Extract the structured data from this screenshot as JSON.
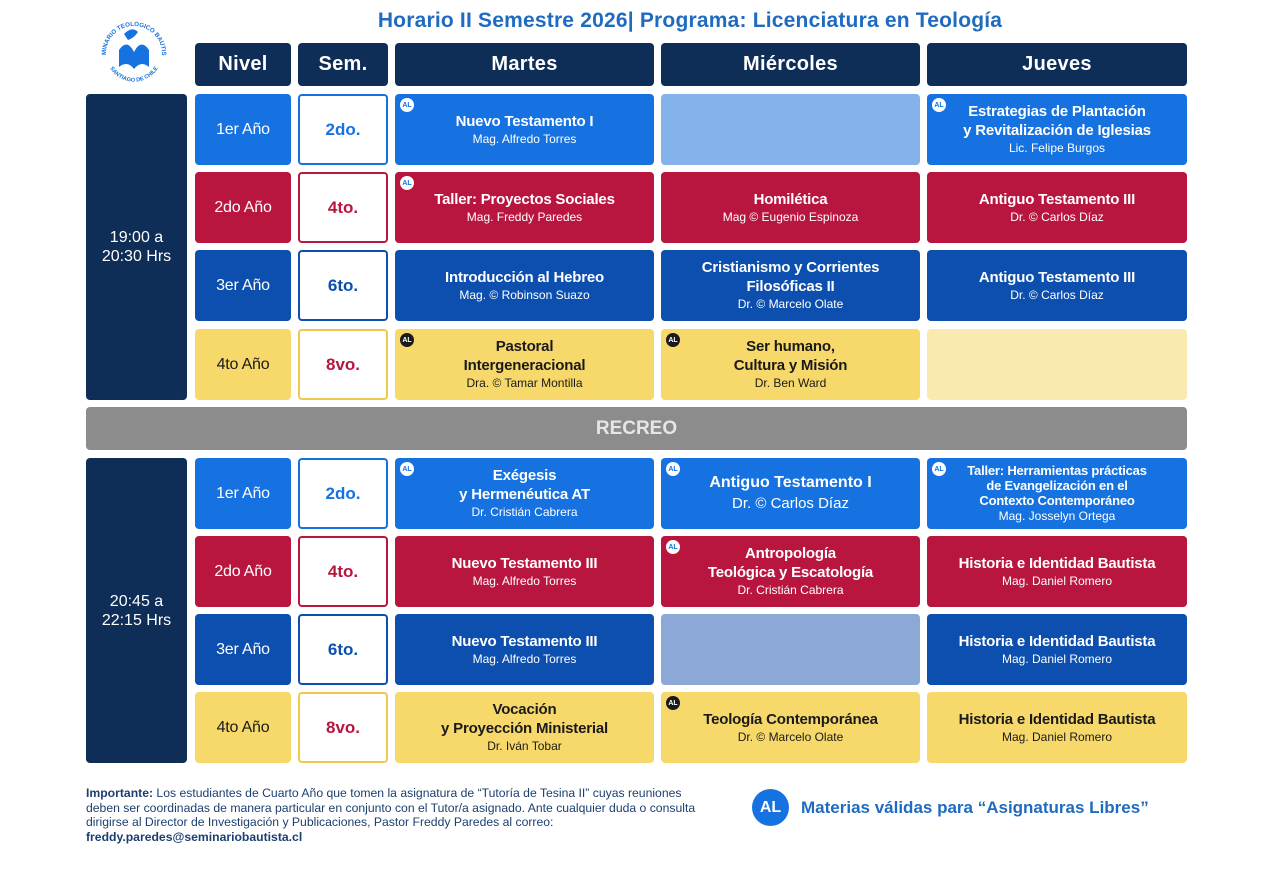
{
  "title": "Horario II Semestre 2026| Programa: Licenciatura en Teología",
  "logo": {
    "text_top": "SEMINARIO TEOLOGICO BAUTISTA",
    "text_bottom": "SANTIAGO DE CHILE"
  },
  "headers": {
    "nivel": "Nivel",
    "sem": "Sem.",
    "martes": "Martes",
    "miercoles": "Miércoles",
    "jueves": "Jueves"
  },
  "block1": {
    "time": "19:00 a\n20:30 Hrs",
    "rows": [
      {
        "nivel": "1er Año",
        "sem": "2do.",
        "martes": {
          "al": true,
          "subject": "Nuevo Testamento I",
          "teacher": "Mag. Alfredo Torres"
        },
        "miercoles": null,
        "jueves": {
          "al": true,
          "subject": "Estrategias de Plantación\ny Revitalización de Iglesias",
          "teacher": "Lic. Felipe Burgos"
        }
      },
      {
        "nivel": "2do Año",
        "sem": "4to.",
        "martes": {
          "al": true,
          "subject": "Taller: Proyectos Sociales",
          "teacher": "Mag. Freddy Paredes"
        },
        "miercoles": {
          "al": false,
          "subject": "Homilética",
          "teacher": "Mag © Eugenio Espinoza"
        },
        "jueves": {
          "al": false,
          "subject": "Antiguo Testamento III",
          "teacher": "Dr. © Carlos Díaz"
        }
      },
      {
        "nivel": "3er Año",
        "sem": "6to.",
        "martes": {
          "al": false,
          "subject": "Introducción al Hebreo",
          "teacher": "Mag. © Robinson Suazo"
        },
        "miercoles": {
          "al": false,
          "subject": "Cristianismo y Corrientes\nFilosóficas II",
          "teacher": "Dr. © Marcelo Olate"
        },
        "jueves": {
          "al": false,
          "subject": "Antiguo Testamento III",
          "teacher": "Dr. © Carlos Díaz"
        }
      },
      {
        "nivel": "4to Año",
        "sem": "8vo.",
        "martes": {
          "al": true,
          "subject": "Pastoral\nIntergeneracional",
          "teacher": "Dra. © Tamar Montilla"
        },
        "miercoles": {
          "al": true,
          "subject": "Ser humano,\nCultura y Misión",
          "teacher": "Dr. Ben Ward"
        },
        "jueves": null
      }
    ]
  },
  "recreo": "RECREO",
  "block2": {
    "time": "20:45 a\n22:15 Hrs",
    "rows": [
      {
        "nivel": "1er Año",
        "sem": "2do.",
        "martes": {
          "al": true,
          "subject": "Exégesis\ny Hermenéutica AT",
          "teacher": "Dr. Cristián Cabrera"
        },
        "miercoles": {
          "al": true,
          "subject": "Antiguo Testamento I",
          "teacher": "Dr. © Carlos Díaz"
        },
        "jueves": {
          "al": true,
          "subject": "Taller: Herramientas prácticas\nde Evangelización en el\nContexto Contemporáneo",
          "teacher": "Mag. Josselyn Ortega"
        }
      },
      {
        "nivel": "2do Año",
        "sem": "4to.",
        "martes": {
          "al": false,
          "subject": "Nuevo Testamento III",
          "teacher": "Mag. Alfredo Torres"
        },
        "miercoles": {
          "al": true,
          "subject": "Antropología\nTeológica y Escatología",
          "teacher": "Dr. Cristián Cabrera"
        },
        "jueves": {
          "al": false,
          "subject": "Historia e Identidad Bautista",
          "teacher": "Mag. Daniel Romero"
        }
      },
      {
        "nivel": "3er Año",
        "sem": "6to.",
        "martes": {
          "al": false,
          "subject": "Nuevo Testamento III",
          "teacher": "Mag. Alfredo Torres"
        },
        "miercoles": null,
        "jueves": {
          "al": false,
          "subject": "Historia e Identidad Bautista",
          "teacher": "Mag. Daniel Romero"
        }
      },
      {
        "nivel": "4to Año",
        "sem": "8vo.",
        "martes": {
          "al": false,
          "subject": "Vocación\ny Proyección Ministerial",
          "teacher": "Dr. Iván Tobar"
        },
        "miercoles": {
          "al": true,
          "subject": "Teología Contemporánea",
          "teacher": "Dr. © Marcelo Olate"
        },
        "jueves": {
          "al": false,
          "subject": "Historia e Identidad Bautista",
          "teacher": "Mag. Daniel Romero"
        }
      }
    ]
  },
  "al_badge": "AL",
  "note": {
    "label": "Importante:",
    "text": " Los estudiantes de Cuarto Año que tomen la asignatura de “Tutoría de Tesina II” cuyas reuniones deben ser coordinadas de manera particular en conjunto con el Tutor/a asignado. Ante cualquier duda o consulta dirigirse al Director de Investigación y Publicaciones, Pastor Freddy Paredes al correo: ",
    "email": "freddy.paredes@seminariobautista.cl"
  },
  "legend": {
    "badge": "AL",
    "text": "Materias válidas para “Asignaturas Libres”"
  },
  "colors": {
    "navy": "#0e2d57",
    "blue": "#1572e0",
    "red": "#b8163f",
    "darkblue": "#0d4fae",
    "yellow": "#f7d86a",
    "gray": "#8c8c8c"
  }
}
